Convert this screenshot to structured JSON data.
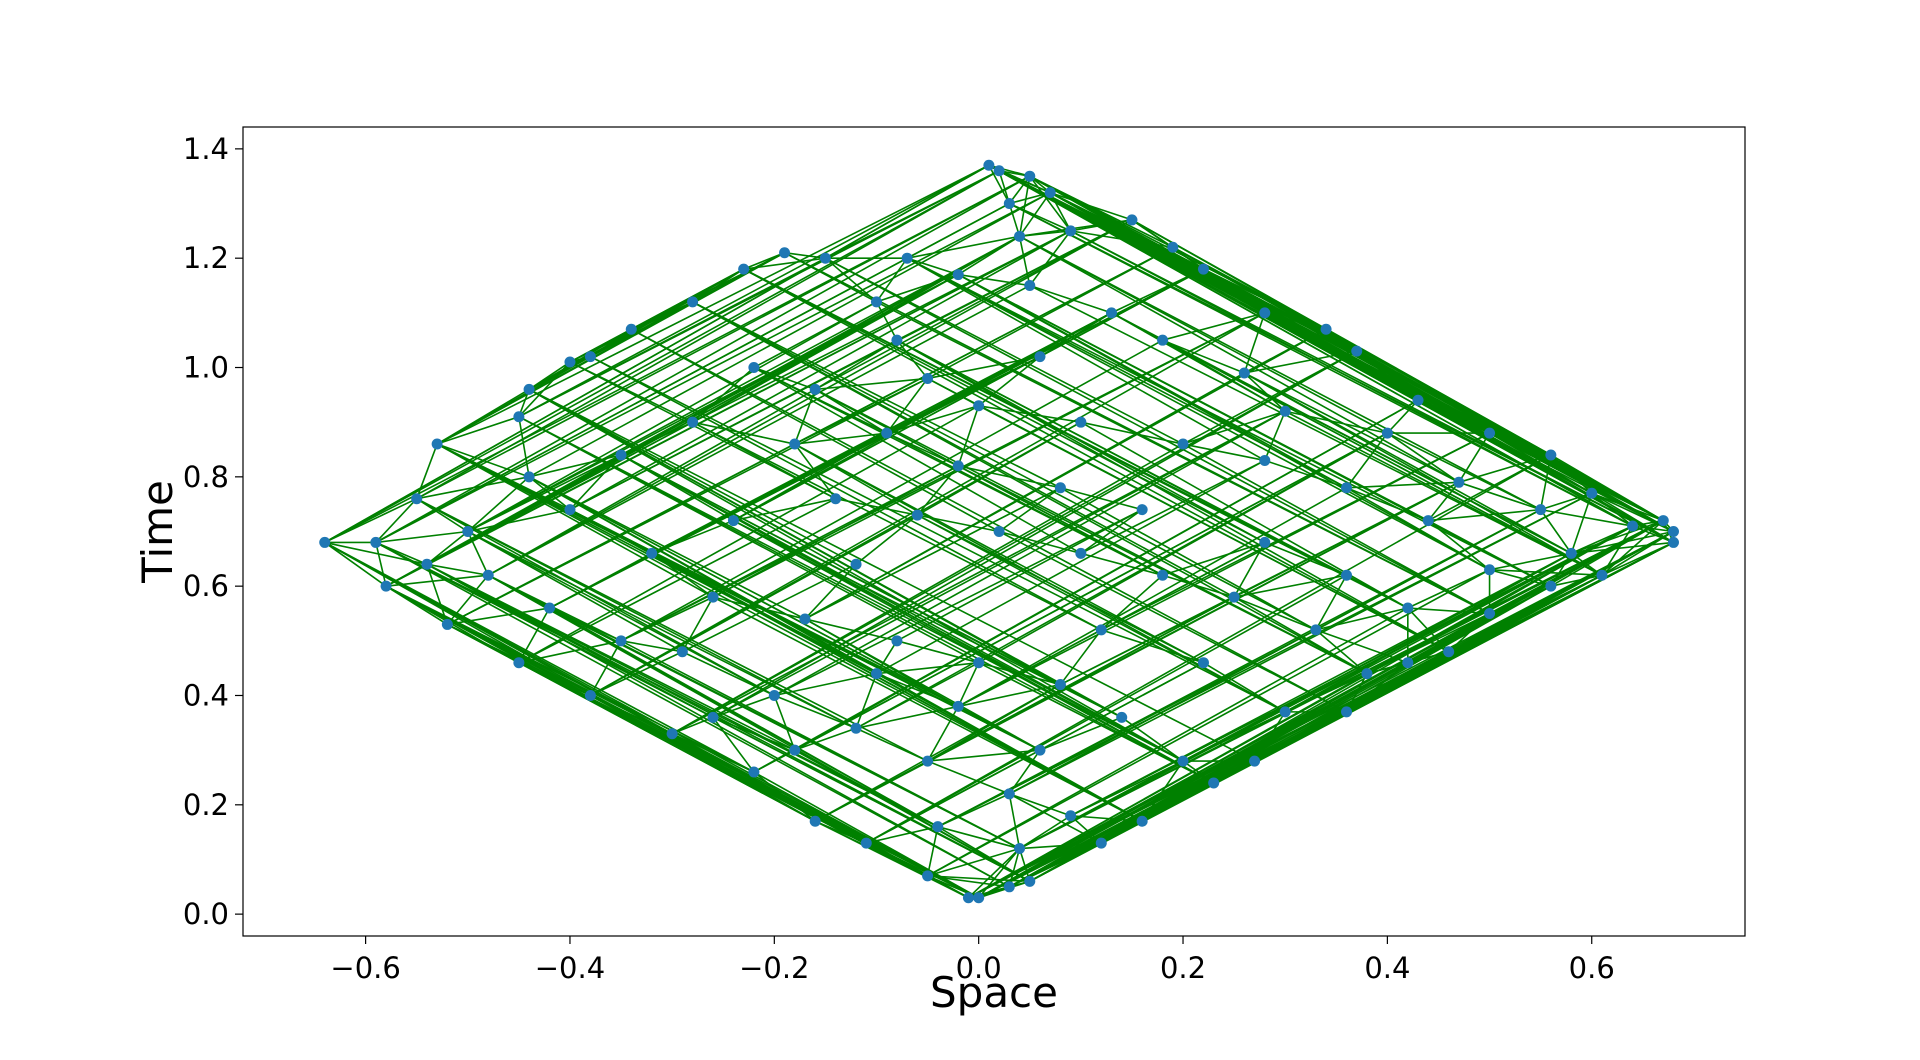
{
  "chart_data": {
    "type": "scatter",
    "title": "",
    "xlabel": "Space",
    "ylabel": "Time",
    "xlim": [
      -0.72,
      0.75
    ],
    "ylim": [
      -0.04,
      1.44
    ],
    "xticks": [
      -0.6,
      -0.4,
      -0.2,
      0.0,
      0.2,
      0.4,
      0.6
    ],
    "xtick_labels": [
      "−0.6",
      "−0.4",
      "−0.2",
      "0.0",
      "0.2",
      "0.4",
      "0.6"
    ],
    "yticks": [
      0.0,
      0.2,
      0.4,
      0.6,
      0.8,
      1.0,
      1.2,
      1.4
    ],
    "ytick_labels": [
      "0.0",
      "0.2",
      "0.4",
      "0.6",
      "0.8",
      "1.0",
      "1.2",
      "1.4"
    ],
    "grid": false,
    "legend": "none",
    "point_color": "#1f77b4",
    "edge_color": "#008000",
    "points": [
      {
        "x": 0.01,
        "y": 1.37
      },
      {
        "x": 0.05,
        "y": 1.35
      },
      {
        "x": 0.07,
        "y": 1.32
      },
      {
        "x": 0.15,
        "y": 1.27
      },
      {
        "x": 0.03,
        "y": 1.3
      },
      {
        "x": -0.19,
        "y": 1.21
      },
      {
        "x": -0.23,
        "y": 1.18
      },
      {
        "x": -0.15,
        "y": 1.2
      },
      {
        "x": -0.28,
        "y": 1.12
      },
      {
        "x": -0.34,
        "y": 1.07
      },
      {
        "x": -0.4,
        "y": 1.01
      },
      {
        "x": -0.38,
        "y": 1.02
      },
      {
        "x": -0.44,
        "y": 0.96
      },
      {
        "x": -0.45,
        "y": 0.91
      },
      {
        "x": -0.53,
        "y": 0.86
      },
      {
        "x": -0.55,
        "y": 0.76
      },
      {
        "x": -0.64,
        "y": 0.68
      },
      {
        "x": -0.59,
        "y": 0.68
      },
      {
        "x": -0.58,
        "y": 0.6
      },
      {
        "x": -0.52,
        "y": 0.53
      },
      {
        "x": -0.45,
        "y": 0.46
      },
      {
        "x": -0.38,
        "y": 0.4
      },
      {
        "x": -0.3,
        "y": 0.33
      },
      {
        "x": -0.22,
        "y": 0.26
      },
      {
        "x": -0.16,
        "y": 0.17
      },
      {
        "x": -0.11,
        "y": 0.13
      },
      {
        "x": -0.05,
        "y": 0.07
      },
      {
        "x": -0.01,
        "y": 0.03
      },
      {
        "x": 0.0,
        "y": 0.03
      },
      {
        "x": 0.03,
        "y": 0.05
      },
      {
        "x": 0.05,
        "y": 0.06
      },
      {
        "x": 0.12,
        "y": 0.13
      },
      {
        "x": 0.16,
        "y": 0.17
      },
      {
        "x": 0.23,
        "y": 0.24
      },
      {
        "x": 0.27,
        "y": 0.28
      },
      {
        "x": 0.36,
        "y": 0.37
      },
      {
        "x": 0.42,
        "y": 0.46
      },
      {
        "x": 0.46,
        "y": 0.48
      },
      {
        "x": 0.5,
        "y": 0.55
      },
      {
        "x": 0.56,
        "y": 0.6
      },
      {
        "x": 0.61,
        "y": 0.62
      },
      {
        "x": 0.68,
        "y": 0.68
      },
      {
        "x": 0.68,
        "y": 0.7
      },
      {
        "x": 0.67,
        "y": 0.72
      },
      {
        "x": 0.64,
        "y": 0.71
      },
      {
        "x": 0.6,
        "y": 0.77
      },
      {
        "x": 0.56,
        "y": 0.84
      },
      {
        "x": 0.5,
        "y": 0.88
      },
      {
        "x": 0.43,
        "y": 0.94
      },
      {
        "x": 0.37,
        "y": 1.03
      },
      {
        "x": 0.34,
        "y": 1.07
      },
      {
        "x": 0.28,
        "y": 1.1
      },
      {
        "x": 0.22,
        "y": 1.18
      },
      {
        "x": 0.19,
        "y": 1.22
      },
      {
        "x": 0.09,
        "y": 1.25
      },
      {
        "x": 0.02,
        "y": 1.36
      },
      {
        "x": -0.07,
        "y": 1.2
      },
      {
        "x": -0.02,
        "y": 1.17
      },
      {
        "x": 0.05,
        "y": 1.15
      },
      {
        "x": 0.13,
        "y": 1.1
      },
      {
        "x": -0.1,
        "y": 1.12
      },
      {
        "x": -0.22,
        "y": 1.0
      },
      {
        "x": -0.16,
        "y": 0.96
      },
      {
        "x": -0.05,
        "y": 0.98
      },
      {
        "x": 0.06,
        "y": 1.02
      },
      {
        "x": 0.18,
        "y": 1.05
      },
      {
        "x": 0.26,
        "y": 0.99
      },
      {
        "x": 0.3,
        "y": 0.92
      },
      {
        "x": 0.4,
        "y": 0.88
      },
      {
        "x": 0.47,
        "y": 0.79
      },
      {
        "x": 0.55,
        "y": 0.74
      },
      {
        "x": 0.58,
        "y": 0.66
      },
      {
        "x": 0.5,
        "y": 0.63
      },
      {
        "x": 0.44,
        "y": 0.72
      },
      {
        "x": 0.36,
        "y": 0.78
      },
      {
        "x": 0.28,
        "y": 0.83
      },
      {
        "x": 0.2,
        "y": 0.86
      },
      {
        "x": 0.1,
        "y": 0.9
      },
      {
        "x": 0.0,
        "y": 0.93
      },
      {
        "x": -0.09,
        "y": 0.88
      },
      {
        "x": -0.18,
        "y": 0.86
      },
      {
        "x": -0.28,
        "y": 0.9
      },
      {
        "x": -0.35,
        "y": 0.84
      },
      {
        "x": -0.44,
        "y": 0.8
      },
      {
        "x": -0.5,
        "y": 0.7
      },
      {
        "x": -0.48,
        "y": 0.62
      },
      {
        "x": -0.42,
        "y": 0.56
      },
      {
        "x": -0.35,
        "y": 0.5
      },
      {
        "x": -0.29,
        "y": 0.48
      },
      {
        "x": -0.2,
        "y": 0.4
      },
      {
        "x": -0.12,
        "y": 0.34
      },
      {
        "x": -0.05,
        "y": 0.28
      },
      {
        "x": 0.03,
        "y": 0.22
      },
      {
        "x": 0.09,
        "y": 0.18
      },
      {
        "x": 0.2,
        "y": 0.28
      },
      {
        "x": 0.3,
        "y": 0.37
      },
      {
        "x": 0.38,
        "y": 0.44
      },
      {
        "x": 0.33,
        "y": 0.52
      },
      {
        "x": 0.25,
        "y": 0.58
      },
      {
        "x": 0.18,
        "y": 0.62
      },
      {
        "x": 0.1,
        "y": 0.66
      },
      {
        "x": 0.02,
        "y": 0.7
      },
      {
        "x": -0.06,
        "y": 0.73
      },
      {
        "x": -0.14,
        "y": 0.76
      },
      {
        "x": -0.24,
        "y": 0.72
      },
      {
        "x": -0.32,
        "y": 0.66
      },
      {
        "x": -0.26,
        "y": 0.58
      },
      {
        "x": -0.17,
        "y": 0.54
      },
      {
        "x": -0.08,
        "y": 0.5
      },
      {
        "x": 0.0,
        "y": 0.46
      },
      {
        "x": 0.08,
        "y": 0.42
      },
      {
        "x": 0.14,
        "y": 0.36
      },
      {
        "x": 0.06,
        "y": 0.3
      },
      {
        "x": -0.02,
        "y": 0.38
      },
      {
        "x": -0.1,
        "y": 0.44
      },
      {
        "x": -0.18,
        "y": 0.3
      },
      {
        "x": -0.26,
        "y": 0.36
      },
      {
        "x": 0.12,
        "y": 0.52
      },
      {
        "x": 0.22,
        "y": 0.46
      },
      {
        "x": 0.28,
        "y": 0.68
      },
      {
        "x": 0.36,
        "y": 0.62
      },
      {
        "x": 0.42,
        "y": 0.56
      },
      {
        "x": 0.08,
        "y": 0.78
      },
      {
        "x": 0.16,
        "y": 0.74
      },
      {
        "x": -0.02,
        "y": 0.82
      },
      {
        "x": -0.12,
        "y": 0.64
      },
      {
        "x": -0.4,
        "y": 0.74
      },
      {
        "x": -0.54,
        "y": 0.64
      },
      {
        "x": -0.08,
        "y": 1.05
      },
      {
        "x": 0.04,
        "y": 1.24
      },
      {
        "x": -0.04,
        "y": 0.16
      },
      {
        "x": 0.04,
        "y": 0.12
      }
    ]
  }
}
